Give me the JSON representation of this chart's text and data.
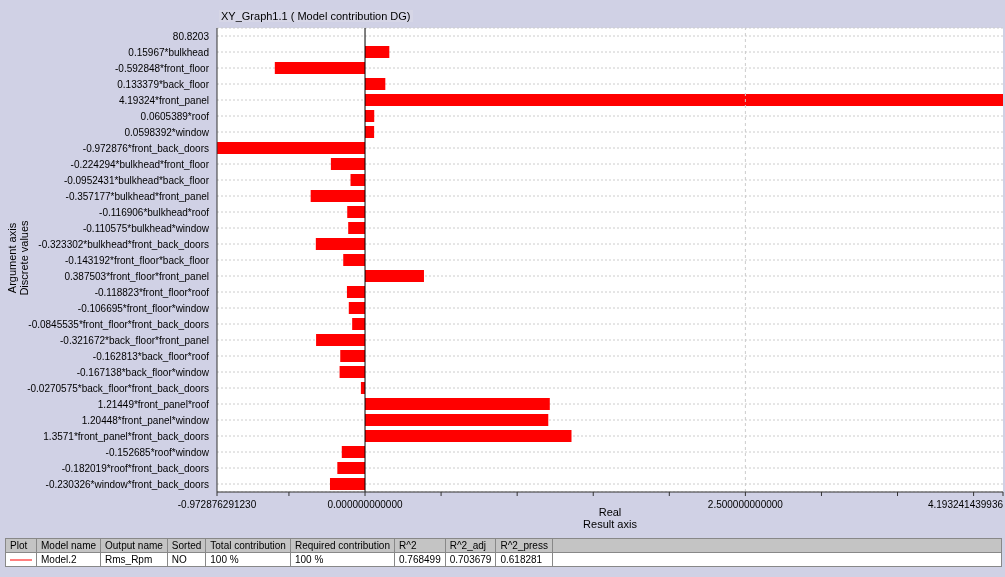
{
  "chart_data": {
    "type": "bar",
    "orientation": "horizontal",
    "title": "XY_Graph1.1 ( Model contribution DG)",
    "xlabel": "Real\nResult axis",
    "ylabel": "Argument axis\nDiscrete values",
    "categories": [
      "80.8203",
      "0.15967*bulkhead",
      "-0.592848*front_floor",
      "0.133379*back_floor",
      "4.19324*front_panel",
      "0.0605389*roof",
      "0.0598392*window",
      "-0.972876*front_back_doors",
      "-0.224294*bulkhead*front_floor",
      "-0.0952431*bulkhead*back_floor",
      "-0.357177*bulkhead*front_panel",
      "-0.116906*bulkhead*roof",
      "-0.110575*bulkhead*window",
      "-0.323302*bulkhead*front_back_doors",
      "-0.143192*front_floor*back_floor",
      "0.387503*front_floor*front_panel",
      "-0.118823*front_floor*roof",
      "-0.106695*front_floor*window",
      "-0.0845535*front_floor*front_back_doors",
      "-0.321672*back_floor*front_panel",
      "-0.162813*back_floor*roof",
      "-0.167138*back_floor*window",
      "-0.0270575*back_floor*front_back_doors",
      "1.21449*front_panel*roof",
      "1.20448*front_panel*window",
      "1.3571*front_panel*front_back_doors",
      "-0.152685*roof*window",
      "-0.182019*roof*front_back_doors",
      "-0.230326*window*front_back_doors"
    ],
    "values": [
      null,
      0.15967,
      -0.592848,
      0.133379,
      4.19324,
      0.0605389,
      0.0598392,
      -0.972876,
      -0.224294,
      -0.0952431,
      -0.357177,
      -0.116906,
      -0.110575,
      -0.323302,
      -0.143192,
      0.387503,
      -0.118823,
      -0.106695,
      -0.0845535,
      -0.321672,
      -0.162813,
      -0.167138,
      -0.0270575,
      1.21449,
      1.20448,
      1.3571,
      -0.152685,
      -0.182019,
      -0.230326
    ],
    "color": "#ff0000",
    "xlim": [
      -0.97287629123,
      4.193241439936
    ],
    "xticks": [
      {
        "value": -0.97287629123,
        "label": "-0.972876291230"
      },
      {
        "value": -0.5,
        "label": null
      },
      {
        "value": 0,
        "label": "0.000000000000"
      },
      {
        "value": 0.5,
        "label": null
      },
      {
        "value": 1,
        "label": null
      },
      {
        "value": 1.5,
        "label": null
      },
      {
        "value": 2,
        "label": null
      },
      {
        "value": 2.5,
        "label": "2.500000000000"
      },
      {
        "value": 3,
        "label": null
      },
      {
        "value": 3.5,
        "label": null
      },
      {
        "value": 4,
        "label": null
      },
      {
        "value": 4.193241439936,
        "label": "4.193241439936"
      }
    ],
    "grid": true,
    "annotations": [
      "Plot",
      "Model name",
      "Output name",
      "Sorted",
      "Total contribution",
      "Required contribution",
      "R^2",
      "R^2_adj",
      "R^2_press",
      "Model.2",
      "Rms_Rpm",
      "NO",
      "100 %",
      "100 %",
      "0.768499",
      "0.703679",
      "0.618281"
    ]
  }
}
